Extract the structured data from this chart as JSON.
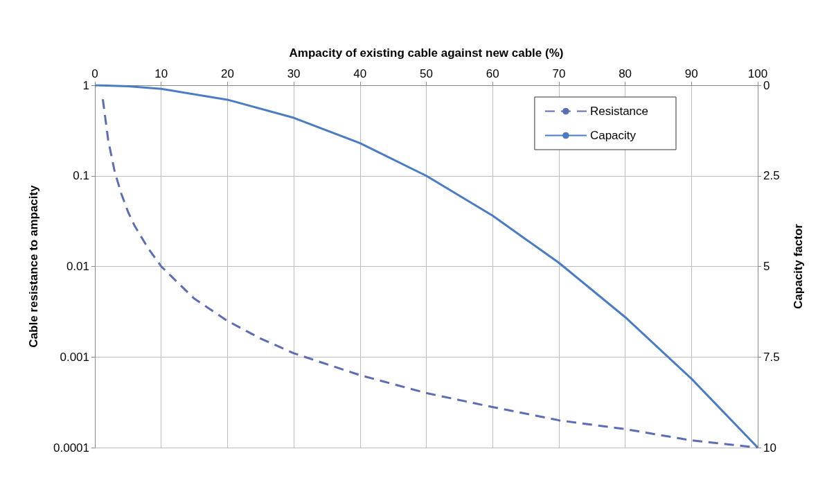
{
  "chart_data": {
    "type": "line",
    "xlabel": "Ampacity of existing cable against new cable (%)",
    "ylabel": "Cable resistance to ampacity",
    "y2label": "Capacity factor",
    "xlim": [
      0,
      100
    ],
    "xticks": [
      0,
      10,
      20,
      30,
      40,
      50,
      60,
      70,
      80,
      90,
      100
    ],
    "ylim": [
      0.0001,
      1
    ],
    "yticks": [
      0.0001,
      0.001,
      0.01,
      0.1,
      1
    ],
    "y2lim": [
      10,
      0
    ],
    "y2ticks": [
      0,
      2.5,
      5,
      7.5,
      10
    ],
    "log": "y",
    "grid": true,
    "legend": "top right",
    "marker": "none",
    "series": [
      {
        "name": "Resistance",
        "color": "#5b6db4",
        "line_style": "dashed",
        "x": [
          1.2,
          2,
          3,
          4,
          5,
          6,
          8,
          10,
          15,
          20,
          25,
          30,
          40,
          50,
          60,
          70,
          80,
          90,
          100
        ],
        "values": [
          0.7,
          0.25,
          0.11,
          0.063,
          0.04,
          0.028,
          0.016,
          0.01,
          0.0044,
          0.0025,
          0.0016,
          0.0011,
          0.00063,
          0.0004,
          0.00028,
          0.0002,
          0.00016,
          0.00012,
          0.0001
        ]
      },
      {
        "name": "Capacity",
        "color": "#4a7cc4",
        "line_style": "solid",
        "axis": "y2",
        "x": [
          0,
          5,
          10,
          20,
          30,
          40,
          50,
          60,
          70,
          80,
          90,
          100
        ],
        "values": [
          0,
          0.03,
          0.1,
          0.4,
          0.9,
          1.6,
          2.5,
          3.6,
          4.9,
          6.4,
          8.1,
          10
        ]
      }
    ]
  }
}
